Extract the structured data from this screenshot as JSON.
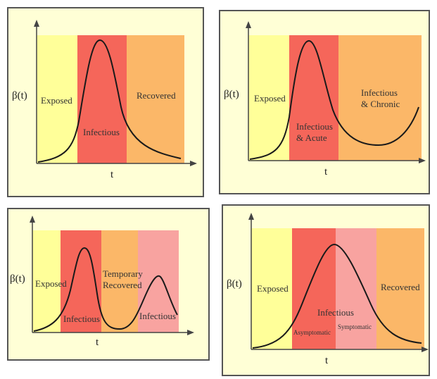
{
  "colors": {
    "panel_bg": "#ffffd6",
    "exposed": "#ffff99",
    "infectious": "#f5665a",
    "recovered": "#fbb768",
    "temporary": "#fbb768",
    "infectious2": "#f8a3a0",
    "symptomatic": "#f8a3a0",
    "curve": "#1a1a1a",
    "axis": "#444444"
  },
  "axis": {
    "y_label": "β(t)",
    "x_label": "t"
  },
  "panels": [
    {
      "regions": [
        "Exposed",
        "Infectious",
        "Recovered"
      ]
    },
    {
      "regions": [
        "Exposed",
        "Infectious\n& Acute",
        "Infectious\n& Chronic"
      ]
    },
    {
      "regions": [
        "Exposed",
        "Infectious",
        "Temporary\nRecovered",
        "Infectious"
      ]
    },
    {
      "regions": [
        "Exposed",
        "Infectious",
        "Recovered"
      ],
      "sub_regions": [
        "Asymptomatic",
        "Symptomatic"
      ]
    }
  ]
}
